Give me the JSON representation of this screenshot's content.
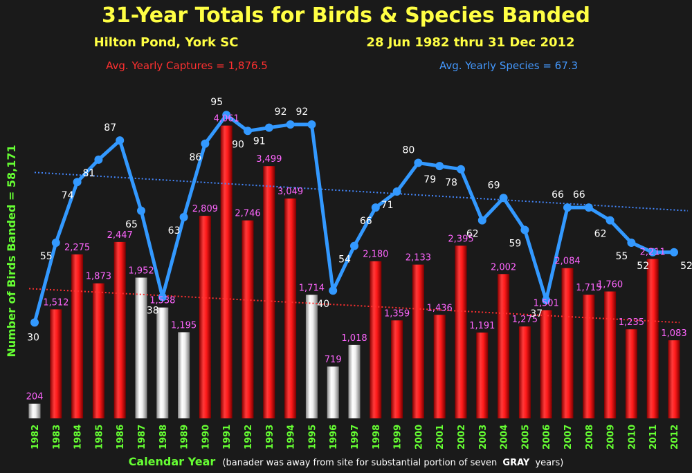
{
  "chart_data": {
    "type": "bar",
    "title": "31-Year Totals for Birds & Species Banded",
    "subtitle_left": "Hilton Pond, York SC",
    "subtitle_right": "28 Jun 1982 thru 31 Dec 2012",
    "avg_captures_label": "Avg. Yearly Captures = 1,876.5",
    "avg_species_label": "Avg. Yearly Species = 67.3",
    "ylabel": "Number of Birds Banded = 58,171",
    "xlabel": "Calendar Year",
    "xlabel_note_prefix": "(banader was away from site for substantial portion of seven",
    "xlabel_note_bold": "GRAY",
    "xlabel_note_suffix": "years)",
    "categories": [
      "1982",
      "1983",
      "1984",
      "1985",
      "1986",
      "1987",
      "1988",
      "1989",
      "1990",
      "1991",
      "1992",
      "1993",
      "1994",
      "1995",
      "1996",
      "1997",
      "1998",
      "1999",
      "2000",
      "2001",
      "2002",
      "2003",
      "2004",
      "2005",
      "2006",
      "2007",
      "2008",
      "2009",
      "2010",
      "2011",
      "2012"
    ],
    "series": [
      {
        "name": "Birds Banded",
        "values": [
          204,
          1512,
          2275,
          1873,
          2447,
          1952,
          1538,
          1195,
          2809,
          4061,
          2746,
          3499,
          3049,
          1714,
          719,
          1018,
          2180,
          1359,
          2133,
          1436,
          2395,
          1191,
          2002,
          1275,
          1501,
          2084,
          1715,
          1760,
          1235,
          2211,
          1083
        ],
        "labels": [
          "204",
          "1,512",
          "2,275",
          "1,873",
          "2,447",
          "1,952",
          "1,538",
          "1,195",
          "2,809",
          "4,061",
          "2,746",
          "3,499",
          "3,049",
          "1,714",
          "719",
          "1,018",
          "2,180",
          "1,359",
          "2,133",
          "1,436",
          "2,395",
          "1,191",
          "2,002",
          "1,275",
          "1,501",
          "2,084",
          "1,715",
          "1,760",
          "1,235",
          "2,211",
          "1,083"
        ],
        "gray_years": [
          "1982",
          "1987",
          "1988",
          "1989",
          "1995",
          "1996",
          "1997"
        ],
        "color": "#ff2020",
        "gray_color": "#e6e6e6"
      },
      {
        "name": "Species Banded",
        "values": [
          30,
          55,
          74,
          81,
          87,
          65,
          38,
          63,
          86,
          95,
          90,
          91,
          92,
          92,
          40,
          54,
          66,
          71,
          80,
          79,
          78,
          62,
          69,
          59,
          37,
          66,
          66,
          62,
          55,
          52,
          52
        ],
        "color": "#3399ff"
      }
    ],
    "trendlines": {
      "captures": {
        "start": 1800,
        "end": 1330,
        "color": "#ff3030"
      },
      "species": {
        "start": 77,
        "end": 65,
        "color": "#4488ff"
      }
    },
    "ylim_birds": [
      0,
      4700
    ],
    "ylim_species": [
      0,
      105
    ],
    "colors": {
      "background": "#1a1a1a",
      "title": "#ffff44",
      "captures_label": "#ff3030",
      "species_label": "#4499ff",
      "bar_label": "#ff66ff",
      "species_label_text": "#ffffff",
      "axis_label": "#66ff33",
      "year_label": "#66ff33"
    }
  }
}
